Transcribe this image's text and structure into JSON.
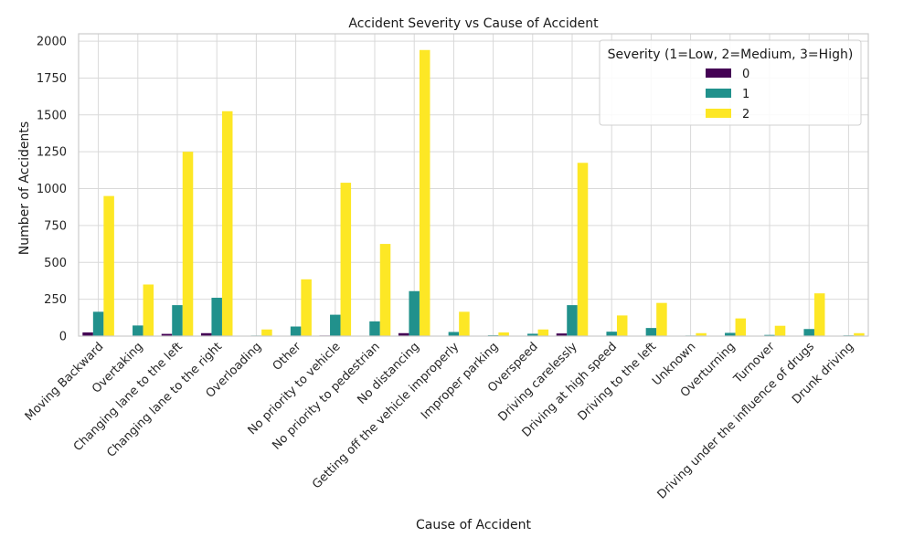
{
  "chart_data": {
    "type": "bar",
    "title": "Accident Severity vs Cause of Accident",
    "xlabel": "Cause of Accident",
    "ylabel": "Number of Accidents",
    "ylim": [
      0,
      2050
    ],
    "yticks": [
      0,
      250,
      500,
      750,
      1000,
      1250,
      1500,
      1750,
      2000
    ],
    "grid": true,
    "legend_title": "Severity (1=Low, 2=Medium, 3=High)",
    "legend_position": "top-right",
    "categories": [
      "Moving Backward",
      "Overtaking",
      "Changing lane to the left",
      "Changing lane to the right",
      "Overloading",
      "Other",
      "No priority to vehicle",
      "No priority to pedestrian",
      "No distancing",
      "Getting off the vehicle improperly",
      "Improper parking",
      "Overspeed",
      "Driving carelessly",
      "Driving at high speed",
      "Driving to the left",
      "Unknown",
      "Overturning",
      "Turnover",
      "Driving under the influence of drugs",
      "Drunk driving"
    ],
    "series": [
      {
        "name": "0",
        "color": "#440154",
        "values": [
          25,
          3,
          15,
          20,
          1,
          3,
          4,
          3,
          20,
          1,
          1,
          2,
          18,
          1,
          2,
          0,
          1,
          0,
          3,
          0
        ]
      },
      {
        "name": "1",
        "color": "#21918c",
        "values": [
          165,
          72,
          210,
          260,
          4,
          65,
          145,
          100,
          305,
          28,
          6,
          16,
          210,
          30,
          55,
          4,
          22,
          8,
          48,
          5
        ]
      },
      {
        "name": "2",
        "color": "#fde725",
        "values": [
          950,
          350,
          1250,
          1525,
          45,
          385,
          1040,
          625,
          1940,
          165,
          25,
          45,
          1175,
          140,
          225,
          20,
          120,
          70,
          290,
          20
        ]
      }
    ]
  }
}
